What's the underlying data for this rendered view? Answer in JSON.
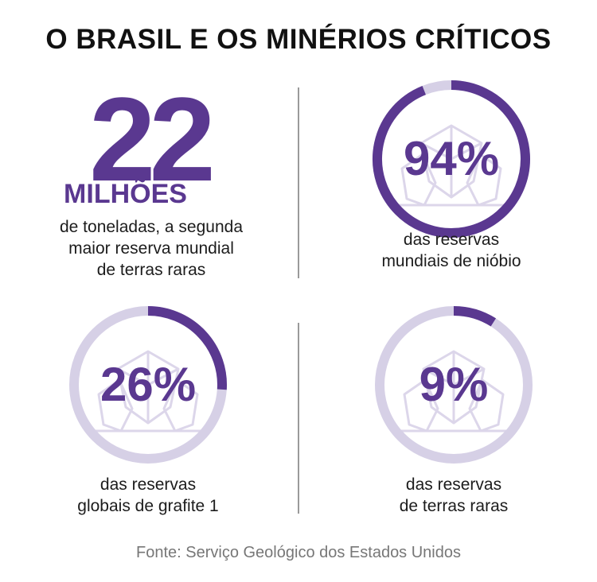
{
  "title": "O BRASIL E OS MINÉRIOS CRÍTICOS",
  "colors": {
    "accent": "#5a3890",
    "track": "#d6d0e6",
    "gem": "#dcd6ea"
  },
  "highlight": {
    "value": "22",
    "unit": "MILHÕES",
    "caption": [
      "de toneladas, a segunda",
      "maior reserva mundial",
      "de terras raras"
    ]
  },
  "chart_data": {
    "type": "gauge",
    "series": [
      {
        "label": "94%",
        "value": 94,
        "caption": [
          "das reservas",
          "mundiais de nióbio"
        ]
      },
      {
        "label": "26%",
        "value": 26,
        "caption": [
          "das reservas",
          "globais de grafite 1"
        ]
      },
      {
        "label": "9%",
        "value": 9,
        "caption": [
          "das reservas",
          "de terras raras"
        ]
      }
    ],
    "ylim": [
      0,
      100
    ]
  },
  "source": "Fonte: Serviço Geológico dos Estados Unidos"
}
